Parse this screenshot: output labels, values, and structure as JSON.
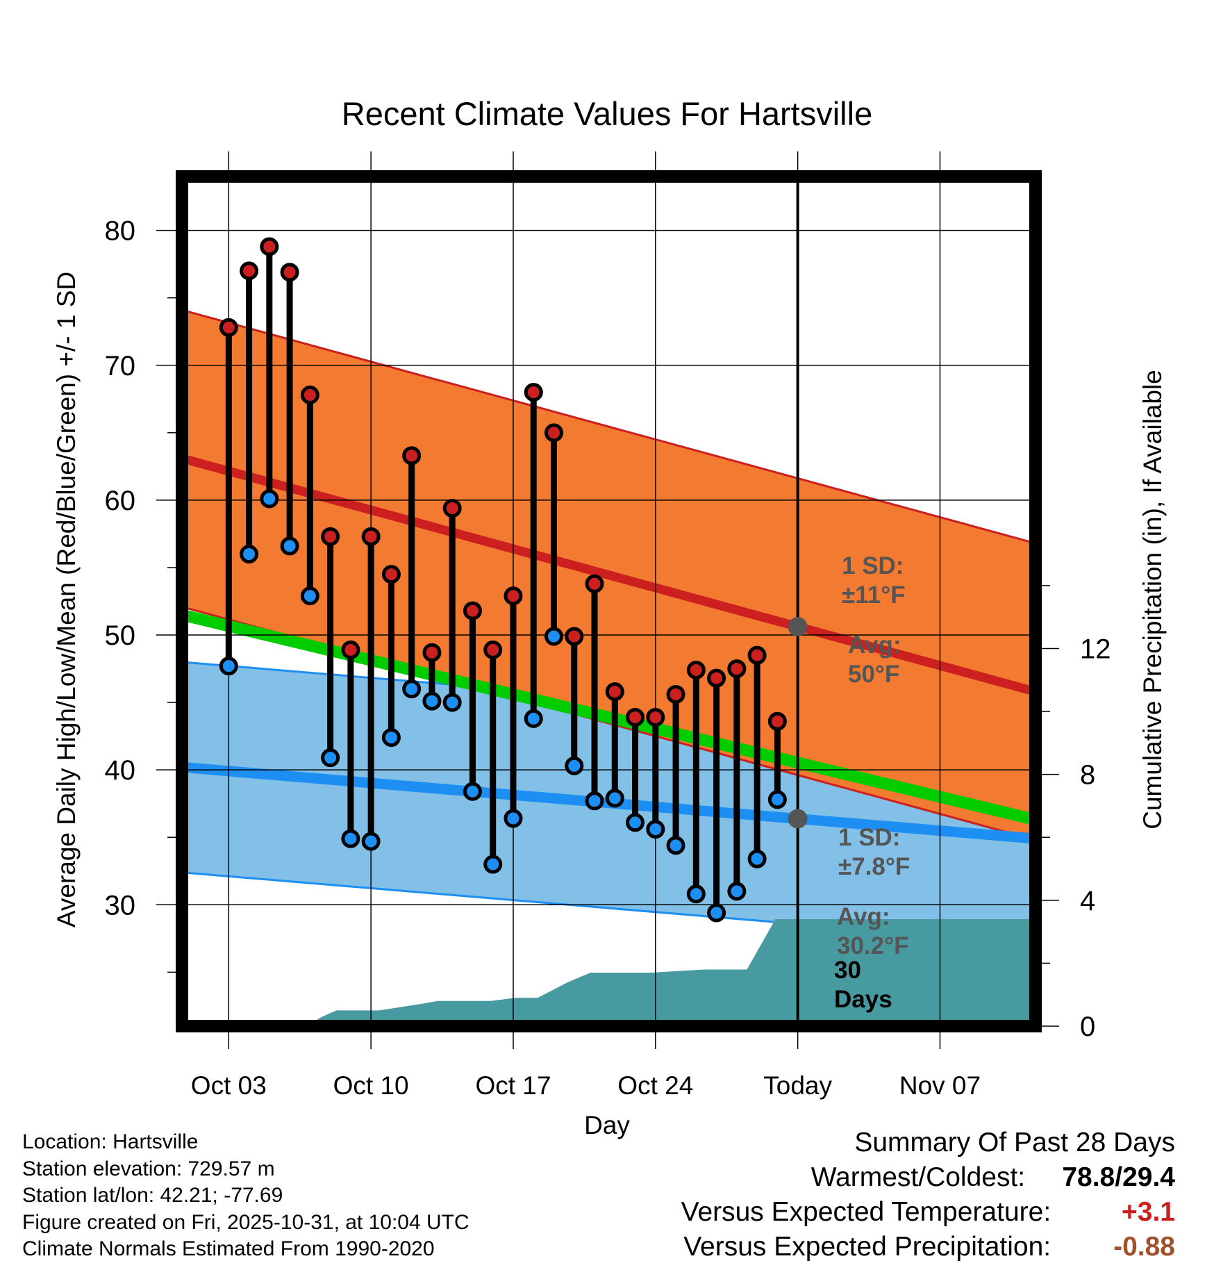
{
  "chart_data": {
    "type": "line",
    "title": "Recent Climate Values For Hartsville",
    "xlabel": "Day",
    "ylabel": "Average Daily High/Low/Mean (Red/Blue/Green) +/- 1 SD",
    "y2label": "Cumulative Precipitation (in), If Available",
    "ylim": [
      21,
      84
    ],
    "y2lim": [
      0,
      27
    ],
    "xlim": [
      -0.3,
      41.7
    ],
    "yticks": [
      30,
      40,
      50,
      60,
      70,
      80
    ],
    "y2ticks": [
      0,
      4,
      8,
      12
    ],
    "xticks": [
      {
        "day": 2,
        "label": "Oct 03"
      },
      {
        "day": 9,
        "label": "Oct 10"
      },
      {
        "day": 16,
        "label": "Oct 17"
      },
      {
        "day": 23,
        "label": "Oct 24"
      },
      {
        "day": 30,
        "label": "Today"
      },
      {
        "day": 37,
        "label": "Nov 07"
      }
    ],
    "today_day": 30,
    "daily_highs": [
      72.8,
      77.0,
      78.8,
      76.9,
      67.8,
      57.3,
      48.9,
      57.3,
      54.5,
      63.3,
      48.7,
      59.4,
      51.8,
      48.9,
      52.9,
      68.0,
      65.0,
      49.9,
      53.8,
      45.8,
      43.9,
      43.9,
      45.6,
      47.4,
      46.8,
      47.5,
      48.5,
      43.6
    ],
    "daily_lows": [
      47.7,
      56.0,
      60.1,
      56.6,
      52.9,
      40.9,
      34.9,
      34.7,
      42.4,
      46.0,
      45.1,
      45.0,
      38.4,
      33.0,
      36.4,
      43.8,
      49.9,
      40.3,
      37.7,
      37.9,
      36.1,
      35.6,
      34.4,
      30.8,
      29.4,
      31.0,
      33.4,
      37.8
    ],
    "normal_high": {
      "name": "Normal high",
      "start": 63.1,
      "end": 45.8,
      "sd": 11
    },
    "normal_low": {
      "name": "Normal low",
      "start": 40.2,
      "end": 34.9,
      "sd": 7.8
    },
    "normal_mean": {
      "name": "Normal mean",
      "start": 51.5,
      "end": 36.3
    },
    "precip_cumulative": {
      "days": [
        5.8,
        6.6,
        7.3,
        9.4,
        10.4,
        11.4,
        12.3,
        14.9,
        16.1,
        17.2,
        18.7,
        19.8,
        22.8,
        25.4,
        25.8,
        26.5,
        27.5,
        28.9,
        31.4,
        41.7
      ],
      "values": [
        0.0,
        0.3,
        0.5,
        0.5,
        0.6,
        0.7,
        0.8,
        0.8,
        0.9,
        0.9,
        1.4,
        1.7,
        1.7,
        1.8,
        1.8,
        1.8,
        1.8,
        3.4,
        3.4,
        3.4
      ]
    },
    "annotations": {
      "high_sd": [
        "1 SD:",
        "±11°F"
      ],
      "high_avg": [
        "Avg:",
        "50°F"
      ],
      "low_sd": [
        "1 SD:",
        "±7.8°F"
      ],
      "low_avg": [
        "Avg:",
        "30.2°F"
      ],
      "precip_days": [
        "30",
        "Days"
      ]
    },
    "colors": {
      "high_band": "#f27a31",
      "high_line": "#cc2020",
      "low_band": "#82c0e8",
      "low_line": "#1e8ff2",
      "mean_line": "#00cc00",
      "precip": "#479aa0",
      "high_dot": "#cc2020",
      "low_dot": "#1e8ff2",
      "annotation": "#555555"
    }
  },
  "footer": {
    "location": "Location: Hartsville",
    "elevation": "Station elevation: 729.57 m",
    "latlon": "Station lat/lon: 42.21; -77.69",
    "created": "Figure created on Fri, 2025-10-31, at 10:04 UTC",
    "normals": "Climate Normals Estimated From 1990-2020"
  },
  "summary": {
    "title": "Summary Of Past 28 Days",
    "warmest_label": "Warmest/Coldest:",
    "warmest_value": "78.8/29.4",
    "temp_label": "Versus Expected Temperature:",
    "temp_value": "+3.1",
    "temp_color": "#cc2020",
    "precip_label": "Versus Expected Precipitation:",
    "precip_value": "-0.88",
    "precip_color": "#a0522d"
  }
}
